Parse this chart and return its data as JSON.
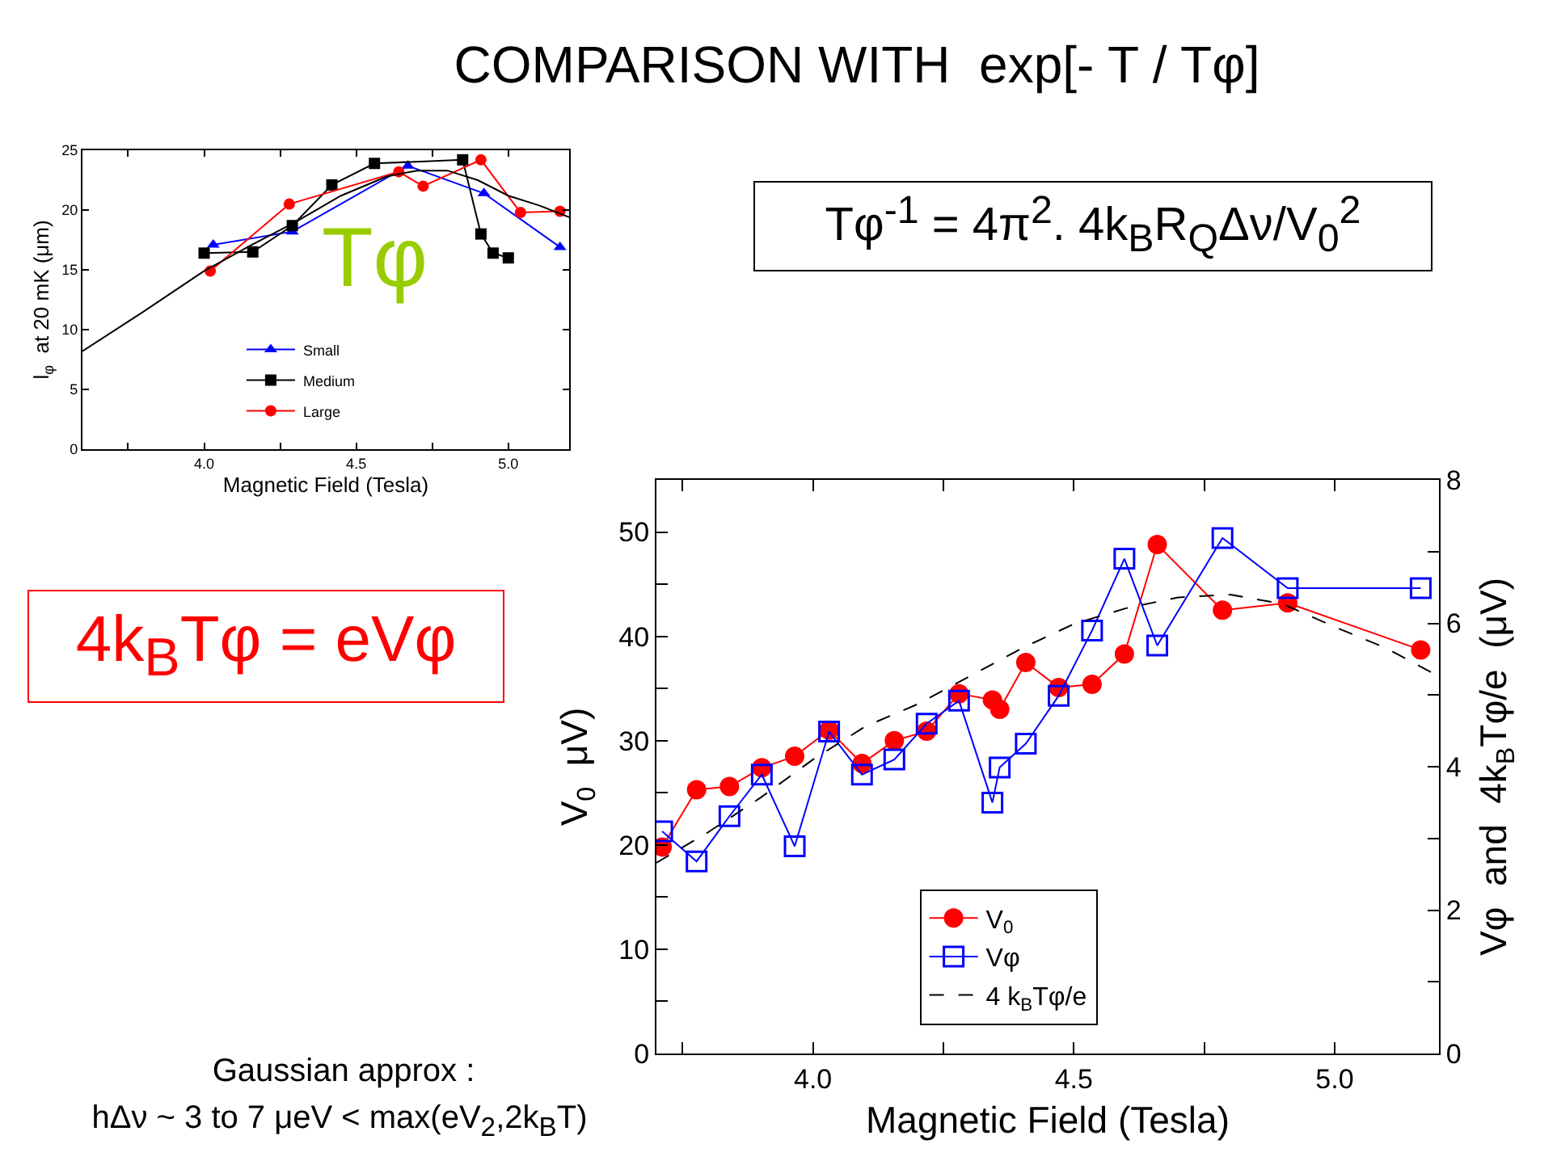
{
  "chart_data": [
    {
      "type": "line",
      "xlabel": "Magnetic Field (Tesla)",
      "ylabel": "l$_{φ}$  at 20 mK (μm)",
      "annotations": [
        "Tφ"
      ],
      "xlim": [
        3.6,
        5.2
      ],
      "xticks": [
        {
          "value": 3.75,
          "label": null
        },
        {
          "value": 4,
          "label": "4.0"
        },
        {
          "value": 4.25,
          "label": null
        },
        {
          "value": 4.5,
          "label": "4.5"
        },
        {
          "value": 4.75,
          "label": null
        },
        {
          "value": 5,
          "label": "5.0"
        }
      ],
      "ylim": [
        0,
        25
      ],
      "yticks": [
        0,
        5,
        10,
        15,
        20,
        25
      ],
      "grid": false,
      "legend": "bottom",
      "line_style": "solid",
      "series": [
        {
          "name": "Small",
          "color": "#0000ff",
          "marker": "triangle",
          "x": [
            4.03,
            4.29,
            4.67,
            4.92,
            5.17
          ],
          "values": [
            17.1,
            18.2,
            23.7,
            21.4,
            16.9
          ]
        },
        {
          "name": "Medium",
          "color": "#000000",
          "marker": "square",
          "x": [
            4.0,
            4.16,
            4.29,
            4.42,
            4.56,
            4.85,
            4.91,
            4.95,
            5.0
          ],
          "values": [
            16.4,
            16.5,
            18.7,
            22.1,
            23.9,
            24.2,
            18.0,
            16.4,
            16.0
          ]
        },
        {
          "name": "Large",
          "color": "#ff0000",
          "marker": "circle",
          "x": [
            4.02,
            4.28,
            4.64,
            4.72,
            4.91,
            5.04,
            5.17
          ],
          "values": [
            14.9,
            20.5,
            23.2,
            22.0,
            24.2,
            19.8,
            19.9
          ]
        },
        {
          "color": "#000000",
          "marker": "none",
          "x": [
            3.6,
            3.8,
            4.0,
            4.15,
            4.3,
            4.45,
            4.6,
            4.7,
            4.8,
            4.9,
            5.0,
            5.1,
            5.2
          ],
          "values": [
            8.2,
            11.5,
            14.9,
            17.0,
            19.0,
            21.2,
            22.8,
            23.3,
            23.3,
            22.5,
            21.2,
            20.4,
            19.4
          ]
        }
      ]
    },
    {
      "type": "line",
      "title": "COMPARISON WITH  exp[- T / Tφ]",
      "xlabel": "Magnetic Field (Tesla)",
      "ylabel": "V$_{0}$  μV)",
      "y2label": "Vφ  and  4k$_{B}$Tφ/e  (μV)",
      "annotations": [
        "Tφ$^{-1}$ = 4π$^{2}$. 4k$_{B}$R$_{Q}$Δν/V$_{0}$$^{2}$",
        "4k$_{B}$Tφ = eVφ",
        "Gaussian approx :",
        "hΔν ~ 3 to 7 μeV < max(eV$_{2}$,2k$_{B}$T)"
      ],
      "xlim": [
        3.7,
        5.2
      ],
      "xticks": [
        {
          "value": 3.75,
          "label": null
        },
        {
          "value": 4,
          "label": "4.0"
        },
        {
          "value": 4.25,
          "label": null
        },
        {
          "value": 4.5,
          "label": "4.5"
        },
        {
          "value": 4.75,
          "label": null
        },
        {
          "value": 5,
          "label": "5.0"
        }
      ],
      "ylim": [
        0,
        55
      ],
      "yticks": [
        0,
        {
          "value": 5,
          "label": null
        },
        10,
        {
          "value": 15,
          "label": null
        },
        20,
        {
          "value": 25,
          "label": null
        },
        30,
        {
          "value": 35,
          "label": null
        },
        40,
        {
          "value": 45,
          "label": null
        },
        50
      ],
      "y2lim": [
        0,
        8
      ],
      "y2ticks": [
        0,
        {
          "value": 1,
          "label": null
        },
        2,
        {
          "value": 3,
          "label": null
        },
        4,
        {
          "value": 5,
          "label": null
        },
        6,
        {
          "value": 7,
          "label": null
        },
        8
      ],
      "grid": false,
      "legend": "bottom",
      "x": [
        3.711,
        3.777,
        3.84,
        3.902,
        3.965,
        4.031,
        4.094,
        4.156,
        4.218,
        4.28,
        4.344,
        4.358,
        4.408,
        4.471,
        4.535,
        4.597,
        4.66,
        4.785,
        4.91,
        5.165
      ],
      "series": [
        {
          "name": "V$_{0}$",
          "color": "#ff0000",
          "marker": "circle",
          "line_style": "solid",
          "values": [
            19.8,
            25.3,
            25.6,
            27.4,
            28.5,
            31.0,
            27.8,
            30.0,
            30.9,
            34.5,
            33.9,
            33.0,
            37.5,
            35.1,
            35.4,
            38.3,
            48.8,
            42.5,
            43.2,
            38.7
          ]
        },
        {
          "name": "Vφ",
          "color": "#0000ff",
          "marker": "square",
          "line_style": "solid",
          "axis": "y2",
          "values": [
            3.1,
            2.68,
            3.31,
            3.89,
            2.89,
            4.49,
            3.89,
            4.1,
            4.6,
            4.92,
            3.5,
            3.99,
            4.32,
            4.99,
            5.9,
            6.9,
            5.69,
            7.19,
            6.49,
            6.49
          ]
        },
        {
          "name": "4 k$_{B}$Tφ/e",
          "color": "#000000",
          "marker": "none",
          "line_style": "dashed",
          "axis": "y2",
          "x": [
            3.7,
            3.8,
            3.9,
            4.0,
            4.1,
            4.2,
            4.3,
            4.4,
            4.5,
            4.6,
            4.7,
            4.8,
            4.9,
            5.0,
            5.1,
            5.2
          ],
          "values": [
            2.66,
            3.09,
            3.57,
            4.1,
            4.56,
            4.87,
            5.26,
            5.65,
            5.99,
            6.21,
            6.36,
            6.4,
            6.27,
            5.95,
            5.65,
            5.26
          ]
        }
      ]
    }
  ]
}
